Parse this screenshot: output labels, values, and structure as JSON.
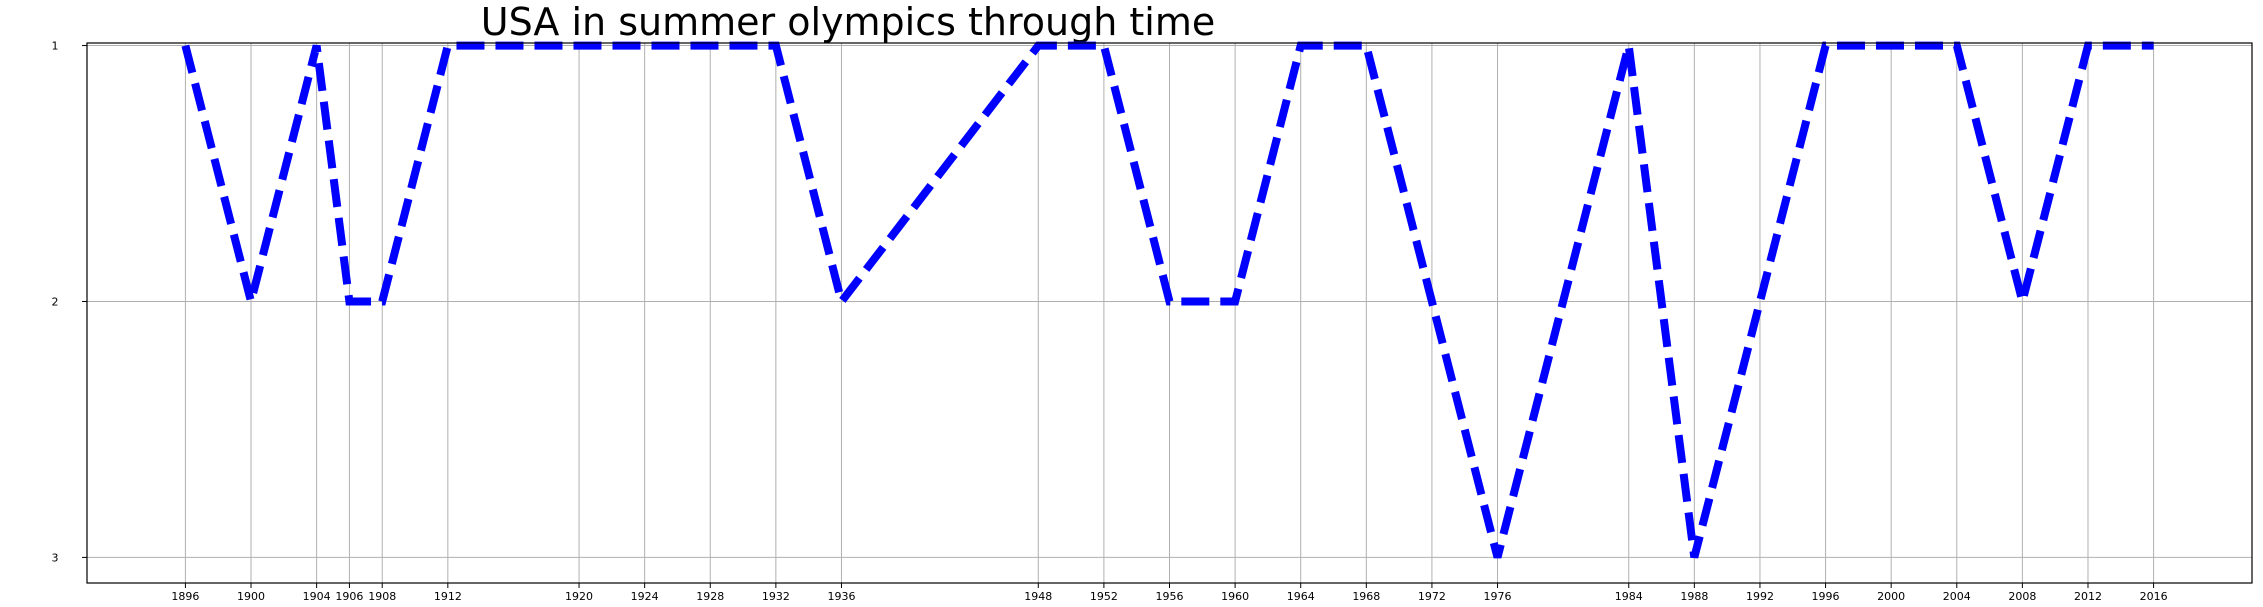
{
  "chart_data": {
    "type": "line",
    "title": "USA in summer olympics through time",
    "xlabel": "",
    "ylabel": "",
    "x": [
      1896,
      1900,
      1904,
      1906,
      1908,
      1912,
      1920,
      1924,
      1928,
      1932,
      1936,
      1948,
      1952,
      1956,
      1960,
      1964,
      1968,
      1972,
      1976,
      1984,
      1988,
      1992,
      1996,
      2000,
      2004,
      2008,
      2012,
      2016
    ],
    "xticks": [
      1896,
      1900,
      1904,
      1906,
      1908,
      1912,
      1920,
      1924,
      1928,
      1932,
      1936,
      1948,
      1952,
      1956,
      1960,
      1964,
      1968,
      1972,
      1976,
      1984,
      1988,
      1992,
      1996,
      2000,
      2004,
      2008,
      2012,
      2016
    ],
    "yticks": [
      1,
      2,
      3
    ],
    "y_inverted": true,
    "xlim": [
      1890,
      2022
    ],
    "ylim": [
      3.1,
      0.99
    ],
    "grid": true,
    "series": [
      {
        "values": [
          1,
          2,
          1,
          2,
          2,
          1,
          1,
          1,
          1,
          1,
          2,
          1,
          1,
          2,
          2,
          1,
          1,
          2,
          3,
          1,
          3,
          2,
          1,
          1,
          1,
          2,
          1,
          1
        ],
        "color": "#0000ff",
        "line_style": "dashed"
      }
    ]
  }
}
